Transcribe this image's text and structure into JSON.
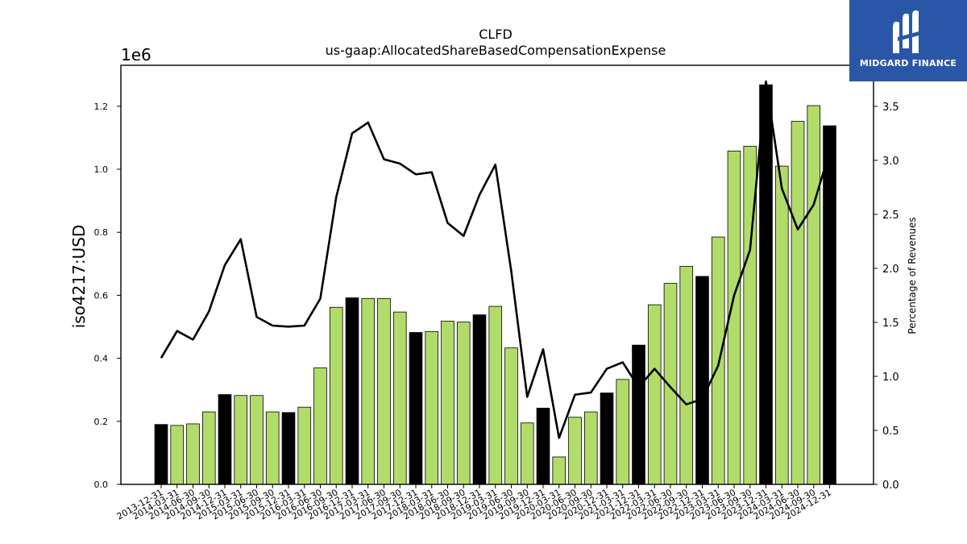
{
  "chart_data": {
    "type": "bar",
    "title": "CLFD",
    "subtitle": "us-gaap:AllocatedShareBasedCompensationExpense",
    "ylabel": "iso4217:USD",
    "y_scale_label": "1e6",
    "y2label": "Percentage of Revenues",
    "ylim": [
      0,
      1330000
    ],
    "y2lim": [
      0,
      3.88
    ],
    "yticks": [
      "0.0",
      "0.2",
      "0.4",
      "0.6",
      "0.8",
      "1.0",
      "1.2"
    ],
    "y2ticks": [
      "0.0",
      "0.5",
      "1.0",
      "1.5",
      "2.0",
      "2.5",
      "3.0",
      "3.5"
    ],
    "categories": [
      "2013-12-31",
      "2014-03-31",
      "2014-06-30",
      "2014-09-30",
      "2014-12-31",
      "2015-03-31",
      "2015-06-30",
      "2015-09-30",
      "2015-12-31",
      "2016-03-31",
      "2016-06-30",
      "2016-09-30",
      "2016-12-31",
      "2017-03-31",
      "2017-06-30",
      "2017-09-30",
      "2017-12-31",
      "2018-03-31",
      "2018-06-30",
      "2018-09-30",
      "2018-12-31",
      "2019-03-31",
      "2019-06-30",
      "2019-09-30",
      "2019-12-31",
      "2020-03-31",
      "2020-06-30",
      "2020-09-30",
      "2020-12-31",
      "2021-03-31",
      "2021-12-31",
      "2022-03-31",
      "2022-06-30",
      "2022-09-30",
      "2022-12-31",
      "2023-03-31",
      "2023-06-30",
      "2023-09-30",
      "2023-12-31",
      "2024-03-31",
      "2024-06-30",
      "2024-09-30",
      "2024-12-31"
    ],
    "series": [
      {
        "type": "bar",
        "values": [
          190000,
          187000,
          192000,
          230000,
          285000,
          282000,
          282000,
          230000,
          228000,
          245000,
          370000,
          562000,
          592000,
          590000,
          590000,
          547000,
          482000,
          485000,
          518000,
          515000,
          538000,
          565000,
          433000,
          195000,
          242000,
          87000,
          213000,
          230000,
          290000,
          333000,
          442000,
          570000,
          638000,
          692000,
          660000,
          785000,
          1058000,
          1073000,
          1268000,
          1010000,
          1152000,
          1202000,
          1138000
        ],
        "highlight": [
          true,
          false,
          false,
          false,
          true,
          false,
          false,
          false,
          true,
          false,
          false,
          false,
          true,
          false,
          false,
          false,
          true,
          false,
          false,
          false,
          true,
          false,
          false,
          false,
          true,
          false,
          false,
          false,
          true,
          false,
          true,
          false,
          false,
          false,
          true,
          false,
          false,
          false,
          true,
          false,
          false,
          false,
          true
        ]
      },
      {
        "type": "line",
        "axis": "right",
        "values": [
          1.17,
          1.42,
          1.34,
          1.6,
          2.03,
          2.27,
          1.55,
          1.47,
          1.46,
          1.47,
          1.72,
          2.66,
          3.25,
          3.35,
          3.01,
          2.97,
          2.87,
          2.89,
          2.42,
          2.3,
          2.68,
          2.96,
          1.97,
          0.81,
          1.25,
          0.43,
          0.83,
          0.85,
          1.07,
          1.13,
          0.9,
          1.07,
          0.9,
          0.74,
          0.79,
          1.1,
          1.75,
          2.17,
          3.73,
          2.74,
          2.36,
          2.59,
          3.08
        ]
      }
    ],
    "colors": {
      "bar": "#b2dc69",
      "bar_highlight": "#000000",
      "line": "#000000"
    },
    "grid": false
  },
  "brand": {
    "name": "MIDGARD FINANCE",
    "color": "#2a56a8"
  }
}
